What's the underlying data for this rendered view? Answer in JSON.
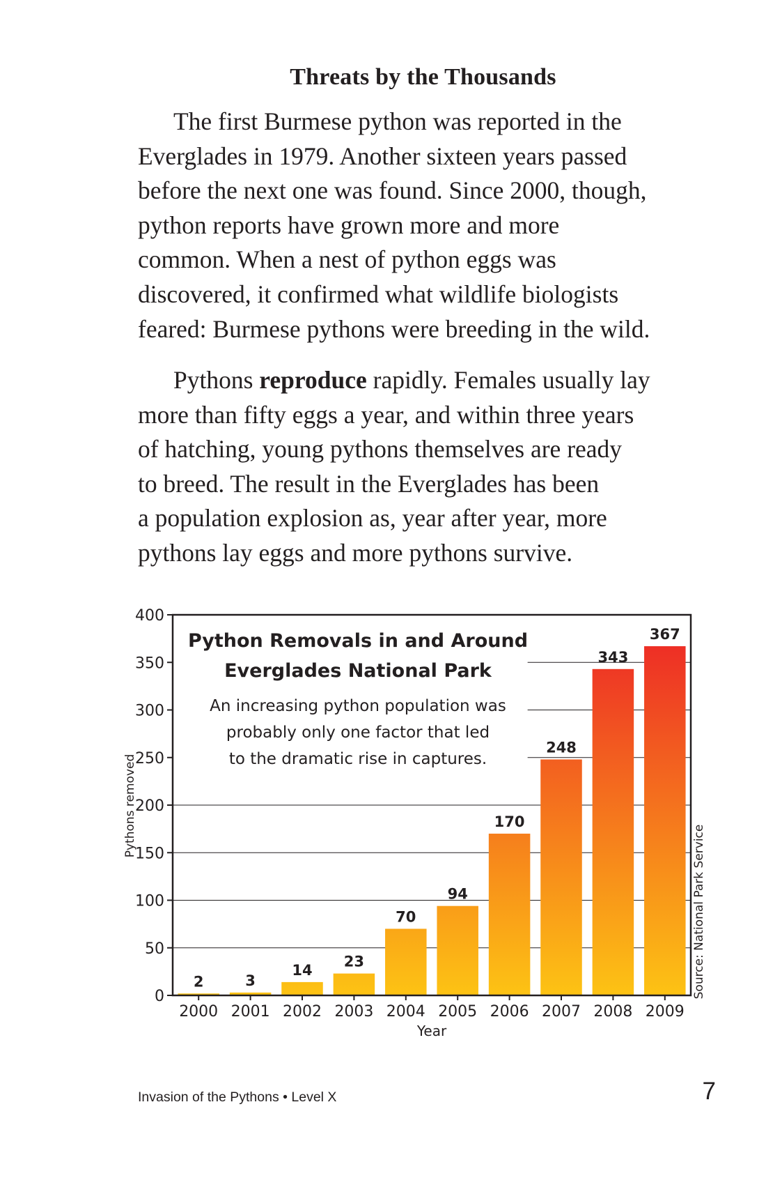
{
  "heading": "Threats by the Thousands",
  "paragraph1": [
    "The first Burmese python was reported in the",
    "Everglades in 1979. Another sixteen years passed",
    "before the next one was found. Since 2000, though,",
    "python reports have grown more and more",
    "common. When a nest of python eggs was",
    "discovered, it confirmed what wildlife biologists",
    "feared: Burmese pythons were breeding in the wild."
  ],
  "paragraph2": {
    "line1_before": "Pythons ",
    "line1_bold": "reproduce",
    "line1_after": " rapidly. Females usually lay",
    "lines": [
      "more than fifty eggs a year, and within three years",
      "of hatching, young pythons themselves are ready",
      "to breed. The result in the Everglades has been",
      "a population explosion as, year after year, more",
      "pythons lay eggs and more pythons survive."
    ]
  },
  "chart_data": {
    "type": "bar",
    "title": "Python Removals in and Around Everglades National Park",
    "title_lines": [
      "Python Removals in and Around",
      "Everglades National Park"
    ],
    "annotation_lines": [
      "An increasing python population was",
      "probably only one factor that led",
      "to the dramatic rise in captures."
    ],
    "xlabel": "Year",
    "ylabel": "Pythons removed",
    "source": "Source: National Park Service",
    "categories": [
      "2000",
      "2001",
      "2002",
      "2003",
      "2004",
      "2005",
      "2006",
      "2007",
      "2008",
      "2009"
    ],
    "values": [
      2,
      3,
      14,
      23,
      70,
      94,
      170,
      248,
      343,
      367
    ],
    "ylim": [
      0,
      400
    ],
    "yticks": [
      0,
      50,
      100,
      150,
      200,
      250,
      300,
      350,
      400
    ],
    "grid": true,
    "colors": {
      "bar_top": "#ec2127",
      "bar_bottom": "#fdc314",
      "grid": "#231f20"
    }
  },
  "footer": {
    "book": "Invasion of the Pythons • Level X",
    "page_number": "7"
  }
}
